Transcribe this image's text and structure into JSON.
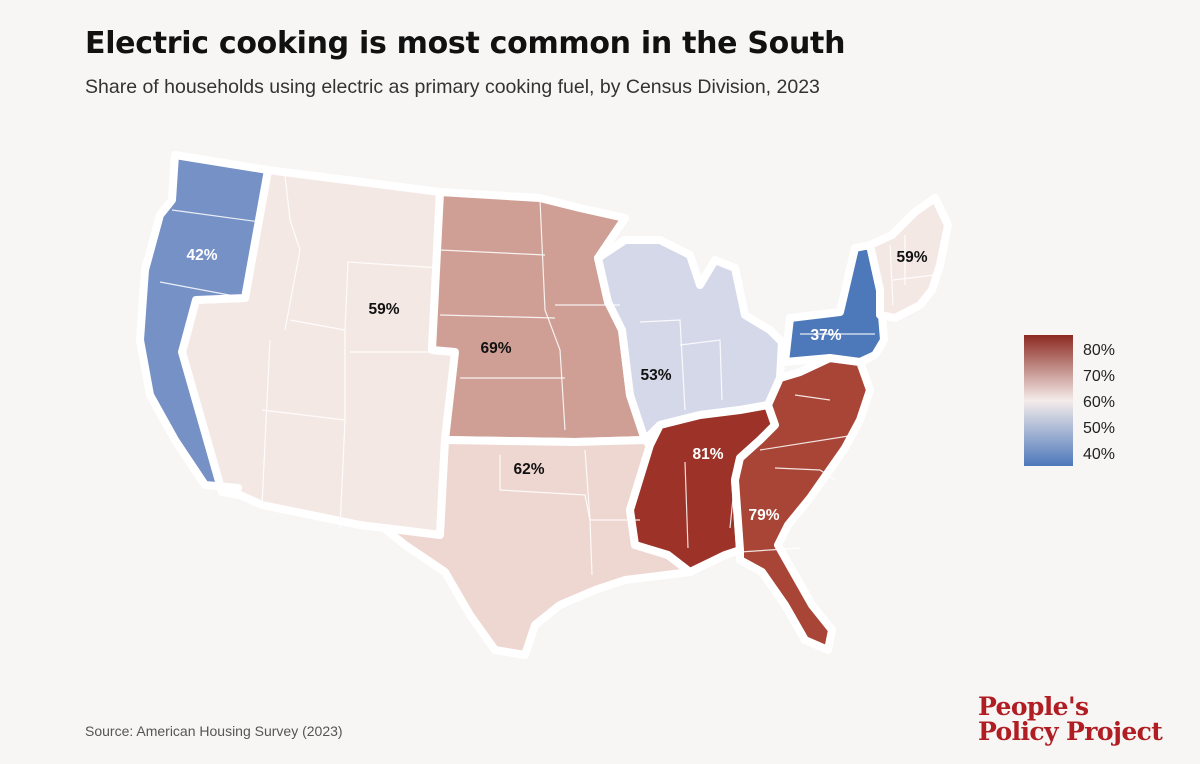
{
  "header": {
    "title": "Electric cooking is most common in the South",
    "subtitle": "Share of households using electric as primary cooking fuel, by Census Division, 2023"
  },
  "footer": {
    "source": "Source: American Housing Survey (2023)",
    "logo_line1": "People's",
    "logo_line2": "Policy Project"
  },
  "map": {
    "regions": [
      {
        "id": "pacific",
        "label": "42%",
        "value": 42,
        "color": "#7691c6",
        "label_color": "#ffffff"
      },
      {
        "id": "mountain",
        "label": "59%",
        "value": 59,
        "color": "#f4e8e5",
        "label_color": "#111111"
      },
      {
        "id": "west-north-central",
        "label": "69%",
        "value": 69,
        "color": "#cf9f95",
        "label_color": "#111111"
      },
      {
        "id": "west-south-central",
        "label": "62%",
        "value": 62,
        "color": "#eed7d1",
        "label_color": "#111111"
      },
      {
        "id": "east-north-central",
        "label": "53%",
        "value": 53,
        "color": "#d5d8e9",
        "label_color": "#111111"
      },
      {
        "id": "east-south-central",
        "label": "81%",
        "value": 81,
        "color": "#9d3328",
        "label_color": "#ffffff"
      },
      {
        "id": "south-atlantic",
        "label": "79%",
        "value": 79,
        "color": "#a94537",
        "label_color": "#ffffff"
      },
      {
        "id": "middle-atlantic",
        "label": "37%",
        "value": 37,
        "color": "#4d78ba",
        "label_color": "#ffffff"
      },
      {
        "id": "new-england",
        "label": "59%",
        "value": 59,
        "color": "#f4e8e5",
        "label_color": "#111111"
      }
    ]
  },
  "legend": {
    "ticks": [
      "80%",
      "70%",
      "60%",
      "50%",
      "40%"
    ],
    "colors": [
      "#8c2a22",
      "#f4ecea",
      "#4d78ba"
    ]
  }
}
